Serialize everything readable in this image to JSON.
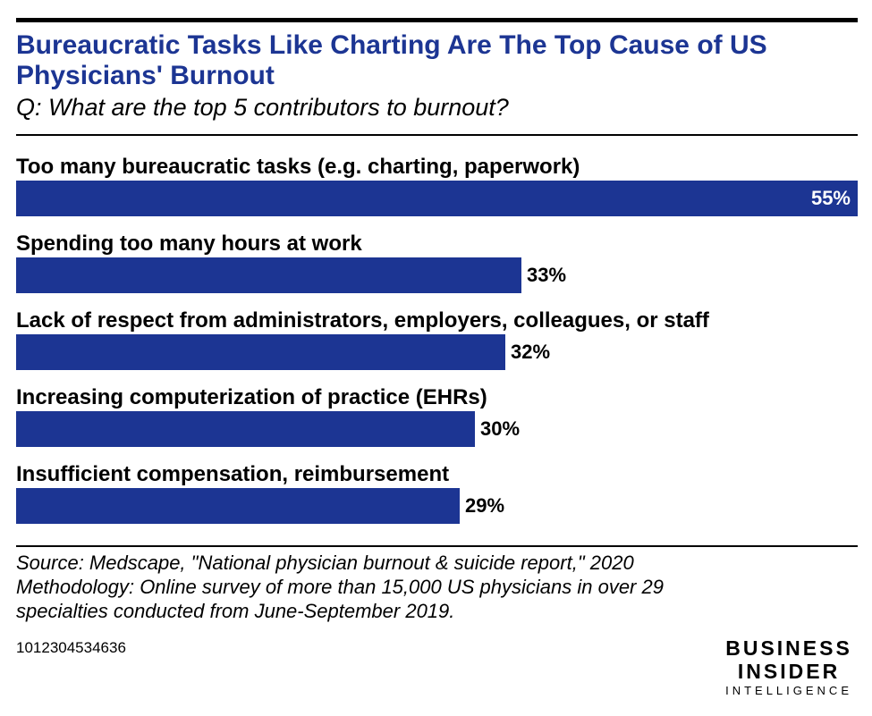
{
  "header": {
    "title": "Bureaucratic Tasks Like Charting Are The Top Cause of US Physicians' Burnout",
    "subtitle": "Q: What are the top 5 contributors to burnout?"
  },
  "chart_data": {
    "type": "bar",
    "orientation": "horizontal",
    "categories": [
      "Too many bureaucratic tasks (e.g. charting, paperwork)",
      "Spending too many hours at work",
      "Lack of respect from administrators, employers, colleagues, or staff",
      "Increasing computerization of practice (EHRs)",
      "Insufficient compensation, reimbursement"
    ],
    "values": [
      55,
      33,
      32,
      30,
      29
    ],
    "value_labels": [
      "55%",
      "33%",
      "32%",
      "30%",
      "29%"
    ],
    "xlim": [
      0,
      55
    ],
    "grid": false,
    "bar_color": "#1c3593"
  },
  "footer": {
    "source_lines": [
      "Source: Medscape, \"National physician burnout & suicide report,\" 2020",
      "Methodology: Online survey of more than 15,000 US physicians in over 29",
      "specialties conducted from June-September 2019."
    ],
    "chart_id": "1012304534636",
    "brand": {
      "line1": "BUSINESS",
      "line2": "INSIDER",
      "line3": "INTELLIGENCE"
    }
  },
  "colors": {
    "accent": "#1c3593",
    "text": "#000000"
  }
}
